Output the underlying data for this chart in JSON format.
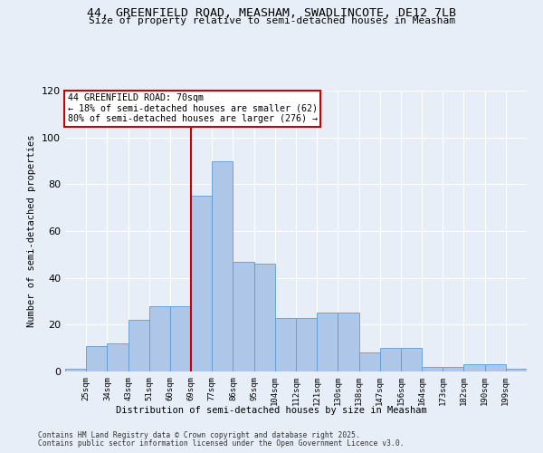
{
  "title_line1": "44, GREENFIELD ROAD, MEASHAM, SWADLINCOTE, DE12 7LB",
  "title_line2": "Size of property relative to semi-detached houses in Measham",
  "xlabel": "Distribution of semi-detached houses by size in Measham",
  "ylabel": "Number of semi-detached properties",
  "tick_labels": [
    "25sqm",
    "34sqm",
    "43sqm",
    "51sqm",
    "60sqm",
    "69sqm",
    "77sqm",
    "86sqm",
    "95sqm",
    "104sqm",
    "112sqm",
    "121sqm",
    "130sqm",
    "138sqm",
    "147sqm",
    "156sqm",
    "164sqm",
    "173sqm",
    "182sqm",
    "190sqm",
    "199sqm"
  ],
  "values": [
    1,
    11,
    12,
    22,
    28,
    28,
    75,
    90,
    47,
    46,
    23,
    23,
    25,
    25,
    8,
    10,
    10,
    2,
    2,
    3,
    3,
    1
  ],
  "bar_color": "#aec6e8",
  "bar_edge_color": "#5b9bd5",
  "vline_color": "#cc0000",
  "bg_color": "#e8eef8",
  "grid_color": "#ffffff",
  "ylim": [
    0,
    120
  ],
  "yticks": [
    0,
    20,
    40,
    60,
    80,
    100,
    120
  ],
  "subject_value": 70,
  "smaller_pct": "18%",
  "smaller_count": 62,
  "larger_pct": "80%",
  "larger_count": 276,
  "footnote1": "Contains HM Land Registry data © Crown copyright and database right 2025.",
  "footnote2": "Contains public sector information licensed under the Open Government Licence v3.0."
}
